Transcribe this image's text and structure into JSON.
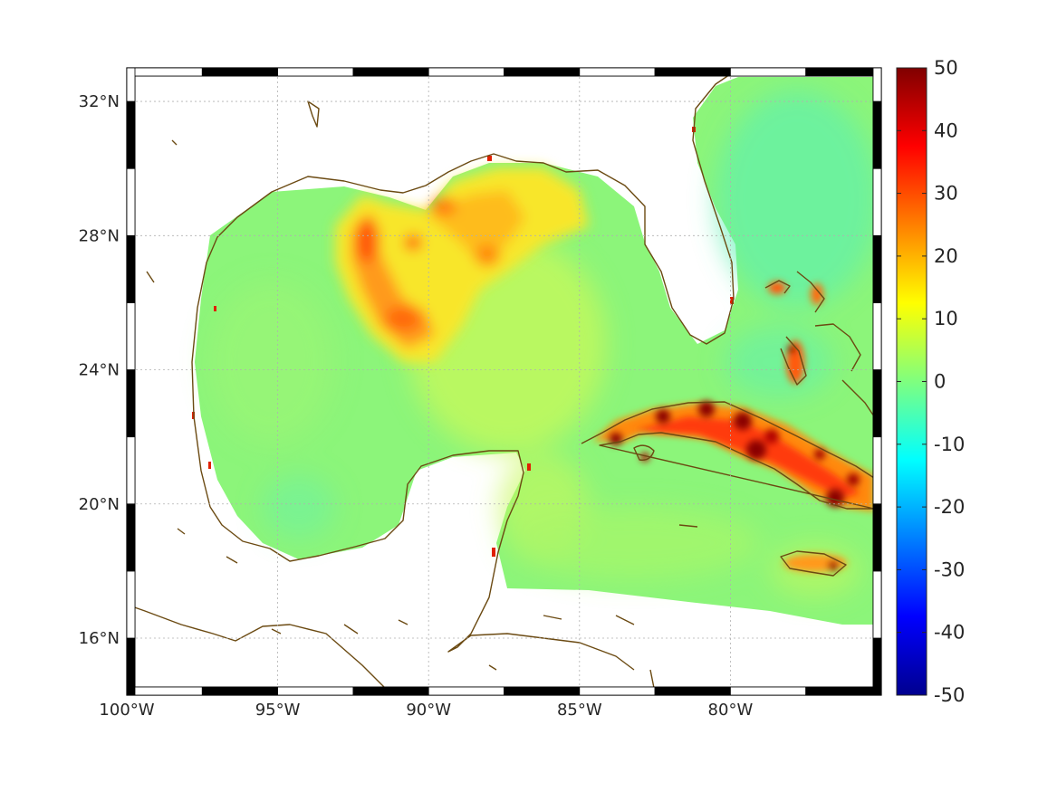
{
  "map": {
    "lon_range": [
      -100,
      -75
    ],
    "lat_range": [
      14.3,
      33
    ],
    "x_ticks": [
      {
        "lon": -100,
        "label": "100°W"
      },
      {
        "lon": -95,
        "label": "95°W"
      },
      {
        "lon": -90,
        "label": "90°W"
      },
      {
        "lon": -85,
        "label": "85°W"
      },
      {
        "lon": -80,
        "label": "80°W"
      }
    ],
    "y_ticks": [
      {
        "lat": 32,
        "label": "32°N"
      },
      {
        "lat": 28,
        "label": "28°N"
      },
      {
        "lat": 24,
        "label": "24°N"
      },
      {
        "lat": 20,
        "label": "20°N"
      },
      {
        "lat": 16,
        "label": "16°N"
      }
    ],
    "grid": true,
    "frame_style": "alternating black-white border",
    "colors": {
      "ocean_base": "#8cf57a",
      "coastline": "#6b4a12",
      "land": "#ffffff"
    }
  },
  "colorbar": {
    "range": [
      -50,
      50
    ],
    "ticks": [
      {
        "value": 50,
        "label": "50"
      },
      {
        "value": 40,
        "label": "40"
      },
      {
        "value": 30,
        "label": "30"
      },
      {
        "value": 20,
        "label": "20"
      },
      {
        "value": 10,
        "label": "10"
      },
      {
        "value": 0,
        "label": "0"
      },
      {
        "value": -10,
        "label": "-10"
      },
      {
        "value": -20,
        "label": "-20"
      },
      {
        "value": -30,
        "label": "-30"
      },
      {
        "value": -40,
        "label": "-40"
      },
      {
        "value": -50,
        "label": "-50"
      }
    ],
    "colormap": "jet",
    "placement": "right"
  }
}
